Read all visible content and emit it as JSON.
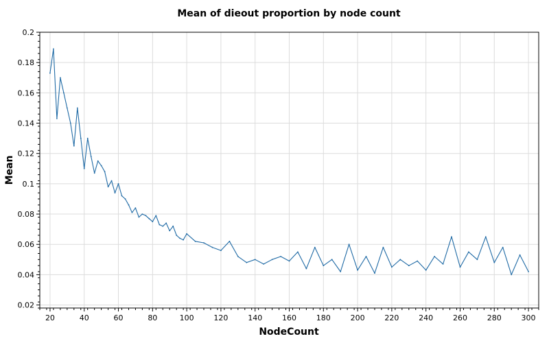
{
  "colors": {
    "series": "#1f6aa5",
    "grid": "#dcdcdc",
    "axis": "#000000"
  },
  "chart_data": {
    "type": "line",
    "title": "Mean of dieout proportion by node count",
    "xlabel": "NodeCount",
    "ylabel": "Mean",
    "xlim": [
      14,
      306
    ],
    "ylim": [
      0.018,
      0.2
    ],
    "xticks": [
      20,
      40,
      60,
      80,
      100,
      120,
      140,
      160,
      180,
      200,
      220,
      240,
      260,
      280,
      300
    ],
    "xtick_labels": [
      "20",
      "40",
      "60",
      "80",
      "100",
      "120",
      "140",
      "160",
      "180",
      "200",
      "220",
      "240",
      "260",
      "280",
      "300"
    ],
    "yticks": [
      0.02,
      0.04,
      0.06,
      0.08,
      0.1,
      0.12,
      0.14,
      0.16,
      0.18,
      0.2
    ],
    "ytick_labels": [
      "0.02",
      "0.04",
      "0.06",
      "0.08",
      "0.1",
      "0.12",
      "0.14",
      "0.16",
      "0.18",
      "0.2"
    ],
    "grid": true,
    "series": [
      {
        "x": [
          20,
          22,
          24,
          26,
          28,
          30,
          32,
          34,
          36,
          38,
          40,
          42,
          44,
          46,
          48,
          50,
          52,
          54,
          56,
          58,
          60,
          62,
          64,
          66,
          68,
          70,
          72,
          74,
          76,
          78,
          80,
          82,
          84,
          86,
          88,
          90,
          92,
          94,
          96,
          98,
          100,
          105,
          110,
          115,
          120,
          125,
          130,
          135,
          140,
          145,
          150,
          155,
          160,
          165,
          170,
          175,
          180,
          185,
          190,
          195,
          200,
          205,
          210,
          215,
          220,
          225,
          230,
          235,
          240,
          245,
          250,
          255,
          260,
          265,
          270,
          275,
          280,
          285,
          290,
          295,
          300
        ],
        "y": [
          0.173,
          0.189,
          0.143,
          0.17,
          0.16,
          0.15,
          0.14,
          0.125,
          0.15,
          0.13,
          0.11,
          0.13,
          0.118,
          0.107,
          0.115,
          0.112,
          0.108,
          0.098,
          0.102,
          0.094,
          0.1,
          0.092,
          0.09,
          0.086,
          0.081,
          0.084,
          0.078,
          0.08,
          0.079,
          0.077,
          0.075,
          0.079,
          0.073,
          0.072,
          0.074,
          0.069,
          0.072,
          0.066,
          0.064,
          0.063,
          0.067,
          0.062,
          0.061,
          0.058,
          0.056,
          0.062,
          0.052,
          0.048,
          0.05,
          0.047,
          0.05,
          0.052,
          0.049,
          0.055,
          0.044,
          0.058,
          0.046,
          0.05,
          0.042,
          0.06,
          0.043,
          0.052,
          0.041,
          0.058,
          0.045,
          0.05,
          0.046,
          0.049,
          0.043,
          0.052,
          0.047,
          0.065,
          0.045,
          0.055,
          0.05,
          0.065,
          0.048,
          0.058,
          0.04,
          0.053,
          0.042
        ]
      }
    ]
  }
}
